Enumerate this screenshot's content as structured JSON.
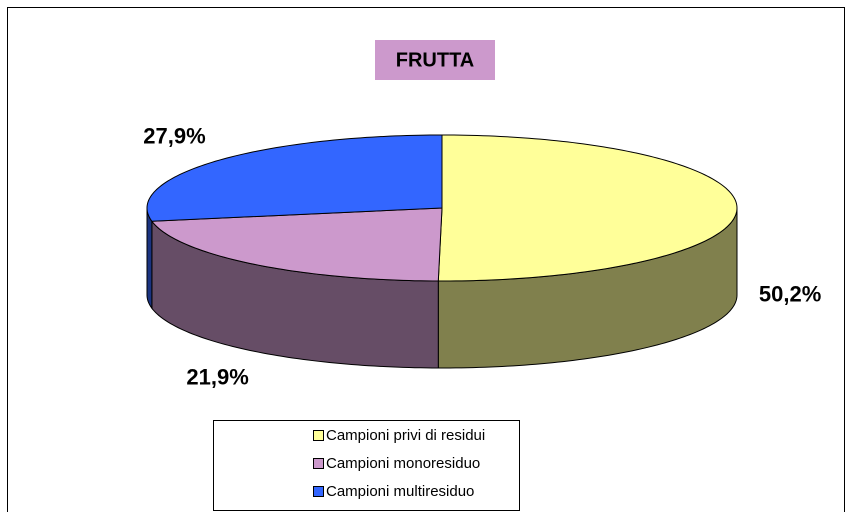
{
  "chart_data": {
    "type": "pie",
    "title": "FRUTTA",
    "categories": [
      "Campioni privi di residui",
      "Campioni monoresiduo",
      "Campioni multiresiduo"
    ],
    "values": [
      50.2,
      21.9,
      27.9
    ],
    "value_labels": [
      "50,2%",
      "21,9%",
      "27,9%"
    ],
    "colors": [
      "#ffff99",
      "#cc99cc",
      "#3366ff"
    ],
    "legend": "bottom"
  }
}
